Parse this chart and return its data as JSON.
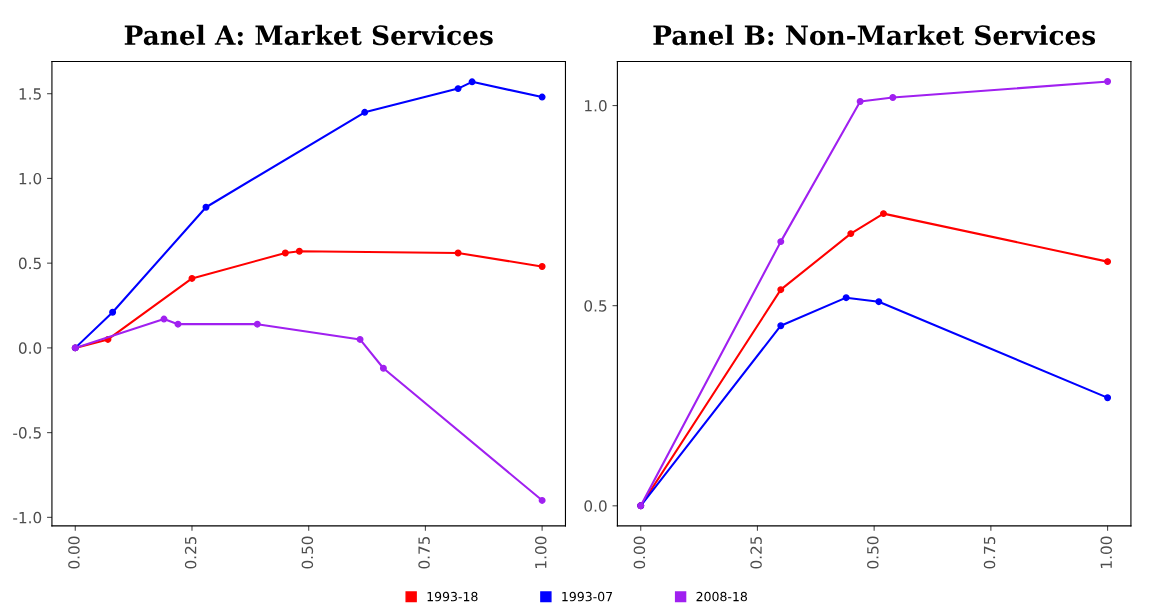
{
  "chart_data": [
    {
      "type": "line",
      "title": "Panel A: Market Services",
      "marker": "circle",
      "line_style": "solid",
      "grid": false,
      "legend": "bottom",
      "xlim": [
        -0.05,
        1.05
      ],
      "xticks": [
        {
          "value": 0,
          "label": "0.00"
        },
        {
          "value": 0.25,
          "label": "0.25"
        },
        {
          "value": 0.5,
          "label": "0.50"
        },
        {
          "value": 0.75,
          "label": "0.75"
        },
        {
          "value": 1,
          "label": "1.00"
        }
      ],
      "ylim": [
        -1.05,
        1.69
      ],
      "yticks": [
        {
          "value": -1,
          "label": "-1.0"
        },
        -0.5,
        {
          "value": 0,
          "label": "0.0"
        },
        0.5,
        {
          "value": 1,
          "label": "1.0"
        },
        1.5
      ],
      "series": [
        {
          "name": "1993-18",
          "color": "#ff0000",
          "x": [
            0,
            0.07,
            0.25,
            0.45,
            0.48,
            0.82,
            1
          ],
          "values": [
            0,
            0.05,
            0.41,
            0.56,
            0.57,
            0.56,
            0.48
          ]
        },
        {
          "name": "1993-07",
          "color": "#0000ff",
          "x": [
            0,
            0.08,
            0.28,
            0.62,
            0.82,
            0.85,
            1
          ],
          "values": [
            0,
            0.21,
            0.83,
            1.39,
            1.53,
            1.57,
            1.48
          ]
        },
        {
          "name": "2008-18",
          "color": "#a020f0",
          "x": [
            0,
            0.19,
            0.22,
            0.39,
            0.61,
            0.66,
            1
          ],
          "values": [
            0,
            0.17,
            0.14,
            0.14,
            0.05,
            -0.12,
            -0.9
          ]
        }
      ]
    },
    {
      "type": "line",
      "title": "Panel B: Non-Market Services",
      "marker": "circle",
      "line_style": "solid",
      "grid": false,
      "xlim": [
        -0.05,
        1.05
      ],
      "xticks": [
        {
          "value": 0,
          "label": "0.00"
        },
        {
          "value": 0.25,
          "label": "0.25"
        },
        {
          "value": 0.5,
          "label": "0.50"
        },
        {
          "value": 0.75,
          "label": "0.75"
        },
        {
          "value": 1,
          "label": "1.00"
        }
      ],
      "ylim": [
        -0.05,
        1.11
      ],
      "yticks": [
        {
          "value": 0,
          "label": "0.0"
        },
        0.5,
        {
          "value": 1,
          "label": "1.0"
        }
      ],
      "series": [
        {
          "name": "1993-18",
          "color": "#ff0000",
          "x": [
            0,
            0.3,
            0.45,
            0.52,
            1
          ],
          "values": [
            0,
            0.54,
            0.68,
            0.73,
            0.61
          ]
        },
        {
          "name": "1993-07",
          "color": "#0000ff",
          "x": [
            0,
            0.3,
            0.44,
            0.51,
            1
          ],
          "values": [
            0,
            0.45,
            0.52,
            0.51,
            0.27
          ]
        },
        {
          "name": "2008-18",
          "color": "#a020f0",
          "x": [
            0,
            0.3,
            0.47,
            0.54,
            1
          ],
          "values": [
            0,
            0.66,
            1.01,
            1.02,
            1.06
          ]
        }
      ]
    }
  ]
}
